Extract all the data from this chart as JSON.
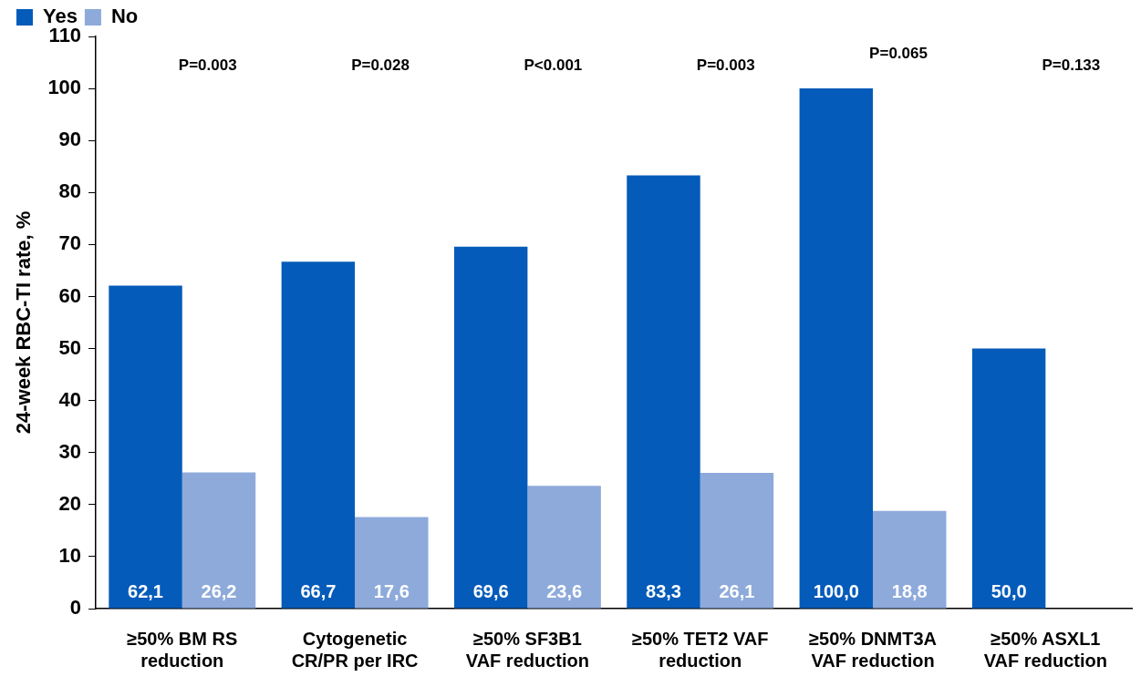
{
  "chart_data": {
    "type": "bar",
    "ylabel": "24-week RBC-TI rate, %",
    "categories": [
      "≥50% BM RS reduction",
      "Cytogenetic CR/PR per IRC",
      "≥50% SF3B1 VAF reduction",
      "≥50% TET2 VAF reduction",
      "≥50% DNMT3A VAF reduction",
      "≥50% ASXL1 VAF reduction"
    ],
    "series": [
      {
        "name": "Yes",
        "color": "#055bb9",
        "values": [
          62.1,
          66.7,
          69.6,
          83.3,
          100.0,
          50.0
        ],
        "value_labels": [
          "62,1",
          "66,7",
          "69,6",
          "83,3",
          "100,0",
          "50,0"
        ]
      },
      {
        "name": "No",
        "color": "#8eaadb",
        "values": [
          26.2,
          17.6,
          23.6,
          26.1,
          18.8,
          null
        ],
        "value_labels": [
          "26,2",
          "17,6",
          "23,6",
          "26,1",
          "18,8",
          null
        ]
      }
    ],
    "ylim": [
      0,
      110
    ],
    "yticks": [
      0,
      10,
      20,
      30,
      40,
      50,
      60,
      70,
      80,
      90,
      100,
      110
    ],
    "grid": false,
    "legend": "top left",
    "annotations": [
      "P=0.003",
      "P=0.028",
      "P<0.001",
      "P=0.003",
      "P=0.065",
      "P=0.133"
    ]
  }
}
